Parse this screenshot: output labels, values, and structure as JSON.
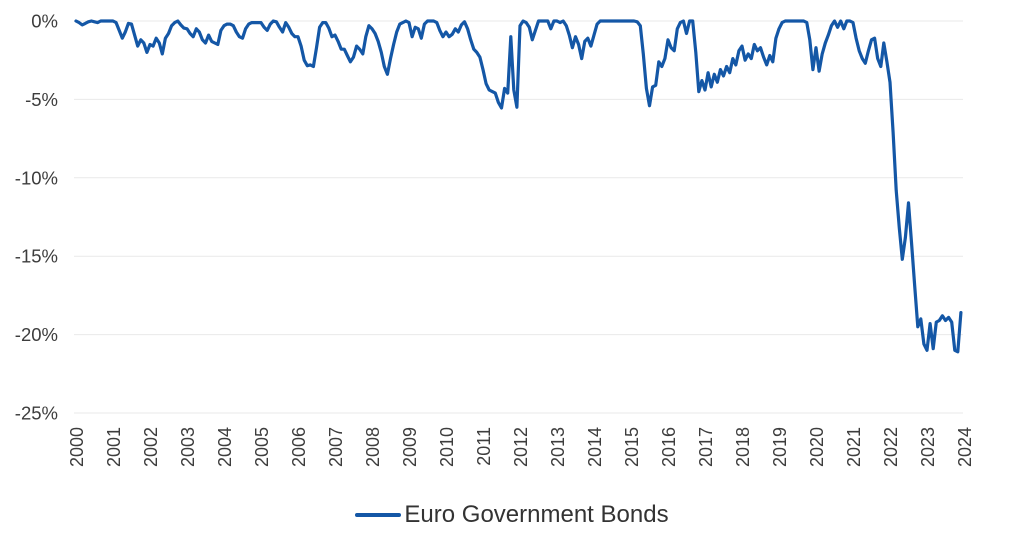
{
  "colors": {
    "background": "#ffffff",
    "gridline": "#e9e9e9",
    "axis_label": "#3d3d3d",
    "legend_text": "#333333",
    "line": "#1457a6"
  },
  "chart_data": {
    "type": "line",
    "grid": "horizontal-only",
    "x_axis": {
      "tick_labels": [
        "2000",
        "2001",
        "2002",
        "2003",
        "2004",
        "2005",
        "2006",
        "2007",
        "2008",
        "2009",
        "2010",
        "2011",
        "2012",
        "2013",
        "2014",
        "2015",
        "2016",
        "2017",
        "2018",
        "2019",
        "2020",
        "2021",
        "2022",
        "2023",
        "2024"
      ],
      "label_rotation_degrees": -90
    },
    "y_axis": {
      "tick_labels": [
        "0%",
        "-5%",
        "-10%",
        "-15%",
        "-20%",
        "-25%"
      ],
      "tick_values": [
        0,
        -5,
        -10,
        -15,
        -20,
        -25
      ],
      "range": [
        -25,
        0
      ],
      "unit": "%"
    },
    "legend": {
      "position": "bottom-center",
      "items": [
        {
          "label": "Euro Government Bonds",
          "color": "#1457a6"
        }
      ]
    },
    "series": [
      {
        "name": "Euro Government Bonds",
        "color": "#1457a6",
        "line_width": 3.2,
        "frequency": "monthly",
        "start": "2000-01",
        "end": "2023-12",
        "years": [
          2000,
          2001,
          2002,
          2003,
          2004,
          2005,
          2006,
          2007,
          2008,
          2009,
          2010,
          2011,
          2012,
          2013,
          2014,
          2015,
          2016,
          2017,
          2018,
          2019,
          2020,
          2021,
          2022,
          2023
        ],
        "values": [
          [
            0,
            -0.1,
            -0.25,
            -0.15,
            -0.05,
            0,
            -0.05,
            -0.1,
            0,
            0,
            0,
            0
          ],
          [
            0,
            -0.1,
            -0.6,
            -1.1,
            -0.7,
            -0.15,
            -0.2,
            -0.9,
            -1.6,
            -1.2,
            -1.4,
            -2.0
          ],
          [
            -1.5,
            -1.6,
            -1.1,
            -1.4,
            -2.1,
            -1.1,
            -0.8,
            -0.3,
            -0.1,
            0,
            -0.25,
            -0.45
          ],
          [
            -0.5,
            -0.8,
            -1.0,
            -0.5,
            -0.7,
            -1.2,
            -1.4,
            -0.9,
            -1.3,
            -1.4,
            -1.5,
            -0.6
          ],
          [
            -0.3,
            -0.2,
            -0.2,
            -0.3,
            -0.7,
            -1.0,
            -1.1,
            -0.5,
            -0.2,
            -0.1,
            -0.1,
            -0.1
          ],
          [
            -0.1,
            -0.4,
            -0.6,
            -0.2,
            0,
            -0.05,
            -0.4,
            -0.7,
            -0.1,
            -0.4,
            -0.8,
            -1.0
          ],
          [
            -1.0,
            -1.6,
            -2.5,
            -2.85,
            -2.8,
            -2.9,
            -1.7,
            -0.4,
            -0.1,
            -0.1,
            -0.45,
            -1.0
          ],
          [
            -0.9,
            -1.3,
            -1.8,
            -1.8,
            -2.2,
            -2.6,
            -2.3,
            -1.6,
            -1.8,
            -2.1,
            -1.0,
            -0.3
          ],
          [
            -0.5,
            -0.8,
            -1.3,
            -2.0,
            -2.9,
            -3.4,
            -2.4,
            -1.5,
            -0.7,
            -0.2,
            -0.1,
            0
          ],
          [
            -0.1,
            -1.0,
            -0.4,
            -0.5,
            -1.1,
            -0.2,
            0,
            0,
            0,
            -0.1,
            -0.6,
            -1.0
          ],
          [
            -0.7,
            -1.0,
            -0.85,
            -0.5,
            -0.7,
            -0.25,
            -0.05,
            -0.5,
            -1.2,
            -1.8,
            -2.0,
            -2.3
          ],
          [
            -3.1,
            -4.0,
            -4.4,
            -4.5,
            -4.6,
            -5.2,
            -5.55,
            -4.3,
            -4.6,
            -1.0,
            -4.4,
            -5.5
          ],
          [
            -0.3,
            0,
            -0.1,
            -0.4,
            -1.2,
            -0.6,
            0,
            0,
            0,
            0,
            -0.5,
            0
          ],
          [
            0,
            -0.1,
            0,
            -0.3,
            -0.9,
            -1.7,
            -1.0,
            -1.5,
            -2.4,
            -1.3,
            -1.1,
            -1.6
          ],
          [
            -0.9,
            -0.2,
            0,
            0,
            0,
            0,
            0,
            0,
            0,
            0,
            0,
            0
          ],
          [
            0,
            0,
            -0.05,
            -0.3,
            -2.1,
            -4.3,
            -5.4,
            -4.2,
            -4.1,
            -2.6,
            -2.9,
            -2.4
          ],
          [
            -1.2,
            -1.7,
            -1.9,
            -0.5,
            -0.1,
            0,
            -0.8,
            0,
            0,
            -2.0,
            -4.5,
            -3.8
          ],
          [
            -4.4,
            -3.3,
            -4.2,
            -3.4,
            -3.9,
            -3.1,
            -3.5,
            -2.9,
            -3.3,
            -2.4,
            -2.8,
            -1.9
          ],
          [
            -1.6,
            -2.5,
            -2.1,
            -2.4,
            -1.5,
            -1.9,
            -1.7,
            -2.3,
            -2.8,
            -2.2,
            -2.6,
            -1.1
          ],
          [
            -0.5,
            -0.1,
            0,
            0,
            0,
            0,
            0,
            0,
            0,
            -0.1,
            -1.2,
            -3.1
          ],
          [
            -1.7,
            -3.2,
            -2.1,
            -1.4,
            -0.9,
            -0.3,
            0,
            -0.4,
            0,
            -0.5,
            0,
            0
          ],
          [
            -0.1,
            -1.1,
            -1.9,
            -2.4,
            -2.7,
            -1.9,
            -1.2,
            -1.1,
            -2.4,
            -2.9,
            -1.4,
            -2.6
          ],
          [
            -3.9,
            -7.1,
            -10.8,
            -13.2,
            -15.2,
            -13.8,
            -11.6,
            -14.2,
            -16.9,
            -19.5,
            -19.0,
            -20.6
          ],
          [
            -21.0,
            -19.3,
            -20.9,
            -19.2,
            -19.1,
            -18.8,
            -19.1,
            -18.9,
            -19.2,
            -21.0,
            -21.1,
            -18.6
          ]
        ]
      }
    ]
  }
}
